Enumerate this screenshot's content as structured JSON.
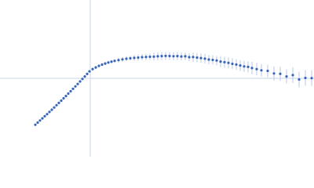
{
  "chart_data": {
    "type": "scatter",
    "x": [
      -70,
      -67,
      -64,
      -61,
      -58,
      -55,
      -52,
      -49,
      -46,
      -43,
      -40,
      -37,
      -34,
      -31,
      -28,
      -25,
      -22,
      -19,
      -16,
      -13,
      -10,
      -7,
      -4,
      -1,
      3,
      7,
      11,
      15,
      19,
      23,
      27,
      31,
      36,
      41,
      46,
      51,
      56,
      61,
      66,
      71,
      76,
      81,
      86,
      91,
      96,
      101,
      106,
      111,
      116,
      121,
      126,
      131,
      136,
      141,
      146,
      151,
      156,
      161,
      166,
      171,
      176,
      181,
      186,
      191,
      196,
      201,
      206,
      212,
      218,
      226,
      234,
      242,
      250,
      258,
      266,
      274,
      282
    ],
    "y": [
      -59.2,
      -56.5,
      -53.8,
      -51.1,
      -48.4,
      -45.7,
      -42.9,
      -40.1,
      -37.2,
      -34.3,
      -31.4,
      -28.5,
      -25.5,
      -22.6,
      -19.5,
      -16.5,
      -13.4,
      -10.3,
      -7.2,
      -4.0,
      -0.8,
      2.4,
      5.6,
      8.9,
      11.8,
      13.9,
      15.9,
      17.5,
      18.9,
      20.2,
      21.3,
      22.3,
      23.3,
      24.2,
      25.0,
      25.6,
      26.1,
      26.5,
      27.0,
      27.3,
      27.5,
      27.7,
      28.1,
      28.4,
      28.6,
      28.5,
      28.2,
      28.4,
      27.9,
      28.1,
      27.0,
      27.2,
      26.5,
      25.9,
      25.1,
      24.0,
      23.5,
      22.8,
      21.4,
      20.6,
      19.8,
      18.5,
      17.6,
      16.4,
      15.2,
      14.6,
      13.1,
      11.8,
      10.2,
      9.5,
      6.2,
      5.8,
      2.4,
      4.1,
      -1.5,
      0.5,
      0.3
    ],
    "error": [
      1.2,
      1.2,
      1.2,
      1.2,
      1.2,
      1.2,
      1.2,
      1.2,
      1.2,
      1.2,
      1.2,
      1.2,
      1.2,
      1.2,
      1.2,
      1.2,
      1.2,
      1.2,
      1.2,
      1.2,
      1.2,
      1.2,
      1.2,
      1.2,
      2,
      2,
      2,
      2,
      2,
      2,
      2,
      2,
      3,
      3,
      3,
      3,
      4,
      4,
      4,
      4,
      4,
      5,
      5,
      5,
      5,
      5,
      5,
      5,
      5,
      5,
      5,
      6,
      6,
      6,
      6,
      6,
      6,
      6,
      7,
      7,
      7,
      7,
      7,
      7,
      7,
      7,
      8,
      8,
      8,
      8,
      9,
      9,
      9,
      10,
      10,
      10,
      10
    ],
    "point_color": "#3a66b8",
    "error_color": "#a9bde2",
    "axis_color": "#c9d5ea",
    "xlim": [
      -115,
      285
    ],
    "ylim": [
      -100,
      100
    ]
  }
}
